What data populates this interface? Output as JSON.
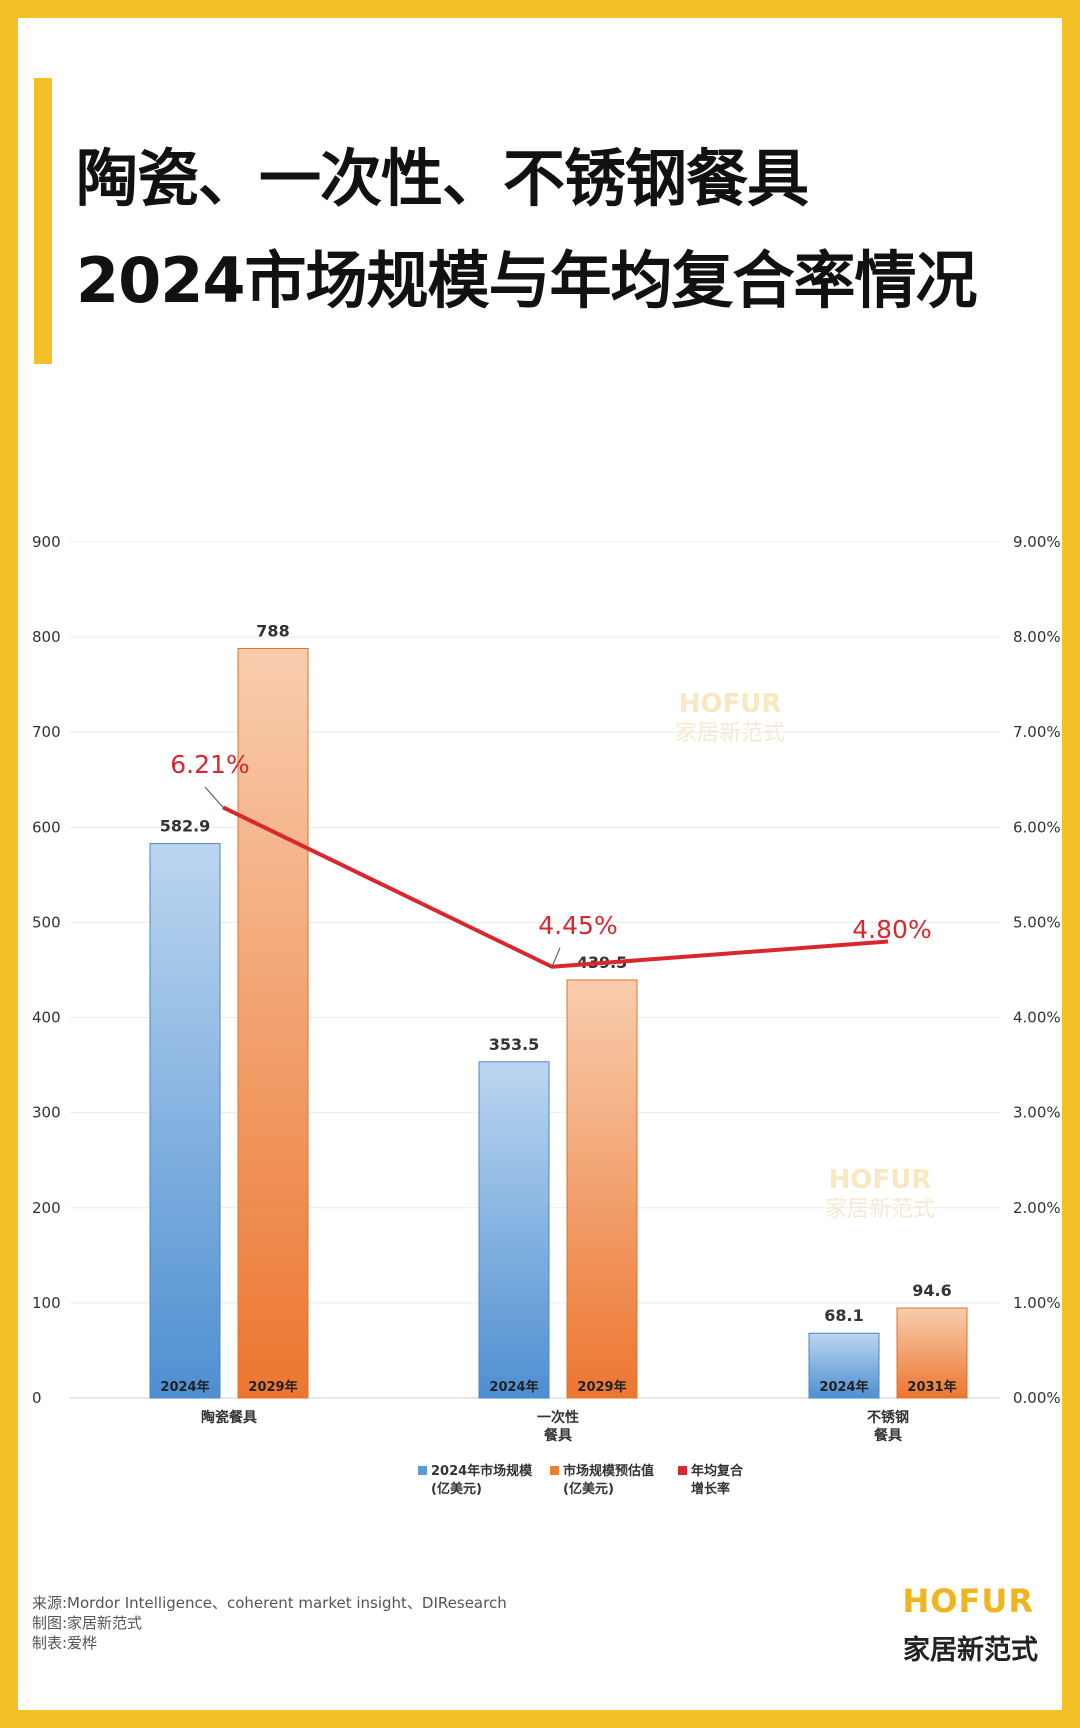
{
  "title": {
    "line1": "陶瓷、一次性、不锈钢餐具",
    "line2": "2024市场规模与年均复合率情况"
  },
  "watermark": {
    "en": "HOFUR",
    "cn": "家居新范式"
  },
  "chart_data": {
    "type": "bar",
    "categories": [
      "陶瓷餐具",
      "一次性\n餐具",
      "不锈钢\n餐具"
    ],
    "series": [
      {
        "name": "2024年市场规模\n(亿美元)",
        "values": [
          582.9,
          353.5,
          68.1
        ],
        "bar_labels": [
          "2024年",
          "2024年",
          "2024年"
        ],
        "color": "#5B9BD5"
      },
      {
        "name": "市场规模预估值\n(亿美元)",
        "values": [
          788,
          439.5,
          94.6
        ],
        "bar_labels": [
          "2029年",
          "2029年",
          "2031年"
        ],
        "color": "#ED7D31"
      },
      {
        "name": "年均复合\n增长率",
        "type": "line",
        "axis": "right",
        "values": [
          6.21,
          4.45,
          4.8
        ],
        "labels": [
          "6.21%",
          "4.45%",
          "4.80%"
        ],
        "color": "#D9272E"
      }
    ],
    "y_left": {
      "range": [
        0,
        900
      ],
      "ticks": [
        "0",
        "100",
        "200",
        "300",
        "400",
        "500",
        "600",
        "700",
        "800",
        "900"
      ]
    },
    "y_right": {
      "range": [
        0,
        9
      ],
      "ticks": [
        "0.00%",
        "1.00%",
        "2.00%",
        "3.00%",
        "4.00%",
        "5.00%",
        "6.00%",
        "7.00%",
        "8.00%",
        "9.00%"
      ]
    },
    "grid": true,
    "legend_position": "bottom"
  },
  "footer": {
    "source": "来源:Mordor Intelligence、coherent market insight、DIResearch",
    "made_by": "制图:家居新范式",
    "author": "制表:爱桦"
  },
  "brand": {
    "en": "HOFUR",
    "cn": "家居新范式"
  }
}
